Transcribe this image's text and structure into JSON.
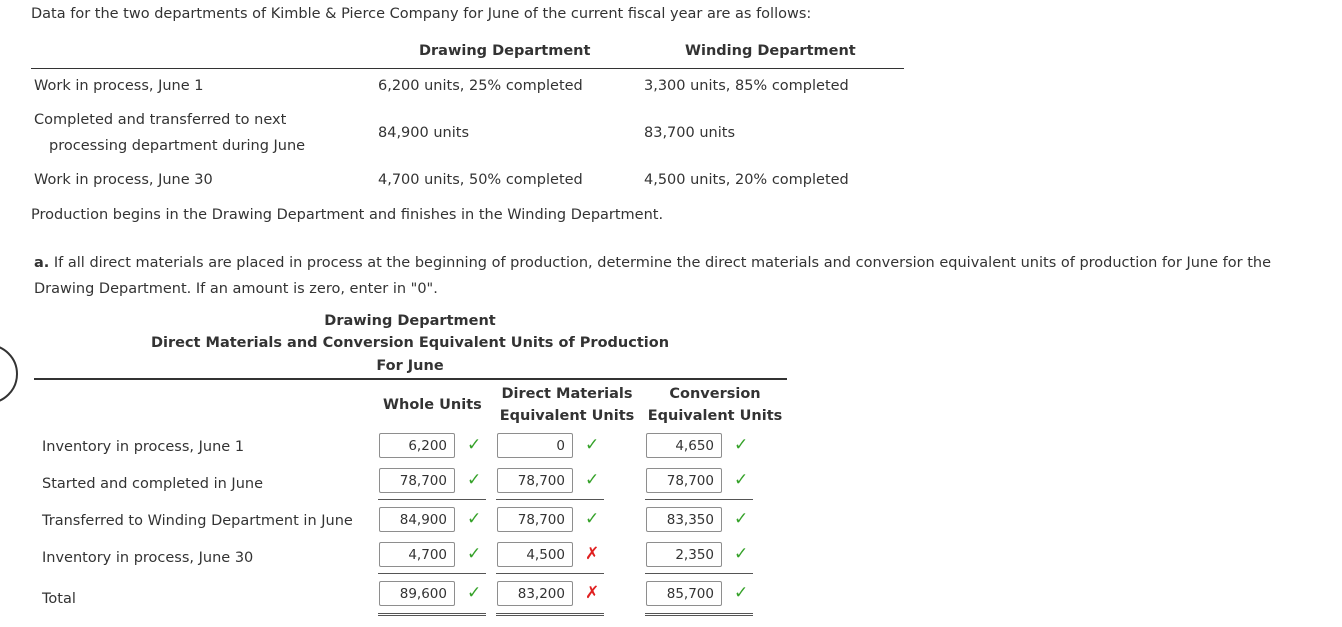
{
  "intro": "Data for the two departments of Kimble & Pierce Company for June of the current fiscal year are as follows:",
  "data_table": {
    "headers": {
      "drawing": "Drawing Department",
      "winding": "Winding Department"
    },
    "rows": [
      {
        "label": [
          "Work in process, June 1"
        ],
        "drawing": "6,200 units, 25% completed",
        "winding": "3,300 units, 85% completed"
      },
      {
        "label": [
          "Completed and transferred to next",
          "processing department during June"
        ],
        "drawing": "84,900 units",
        "winding": "83,700 units"
      },
      {
        "label": [
          "Work in process, June 30"
        ],
        "drawing": "4,700 units, 50% completed",
        "winding": "4,500 units, 20% completed"
      }
    ]
  },
  "production_note": "Production begins in the Drawing Department and finishes in the Winding Department.",
  "question": {
    "letter": "a.",
    "line1": "If all direct materials are placed in process at the beginning of production, determine the direct materials and conversion equivalent units of production for June for the",
    "line2": "Drawing Department. If an amount is zero, enter in \"0\"."
  },
  "schedule": {
    "title1": "Drawing Department",
    "title2": "Direct Materials and Conversion Equivalent Units of Production",
    "title3": "For June",
    "col_whole": "Whole Units",
    "col_dm": [
      "Direct Materials",
      "Equivalent Units"
    ],
    "col_conv": [
      "Conversion",
      "Equivalent Units"
    ],
    "rows": [
      {
        "label": "Inventory in process, June 1",
        "whole": "6,200",
        "whole_ok": true,
        "dm": "0",
        "dm_ok": true,
        "conv": "4,650",
        "conv_ok": true
      },
      {
        "label": "Started and completed in June",
        "whole": "78,700",
        "whole_ok": true,
        "dm": "78,700",
        "dm_ok": true,
        "conv": "78,700",
        "conv_ok": true
      },
      {
        "label": "Transferred to Winding Department in June",
        "whole": "84,900",
        "whole_ok": true,
        "dm": "78,700",
        "dm_ok": true,
        "conv": "83,350",
        "conv_ok": true
      },
      {
        "label": "Inventory in process, June 30",
        "whole": "4,700",
        "whole_ok": true,
        "dm": "4,500",
        "dm_ok": false,
        "conv": "2,350",
        "conv_ok": true
      },
      {
        "label": "Total",
        "whole": "89,600",
        "whole_ok": true,
        "dm": "83,200",
        "dm_ok": false,
        "conv": "85,700",
        "conv_ok": true
      }
    ]
  },
  "marks": {
    "correct": "✓",
    "incorrect": "✗"
  },
  "colors": {
    "correct": "#36a22a",
    "incorrect": "#e02020",
    "text": "#333333"
  }
}
